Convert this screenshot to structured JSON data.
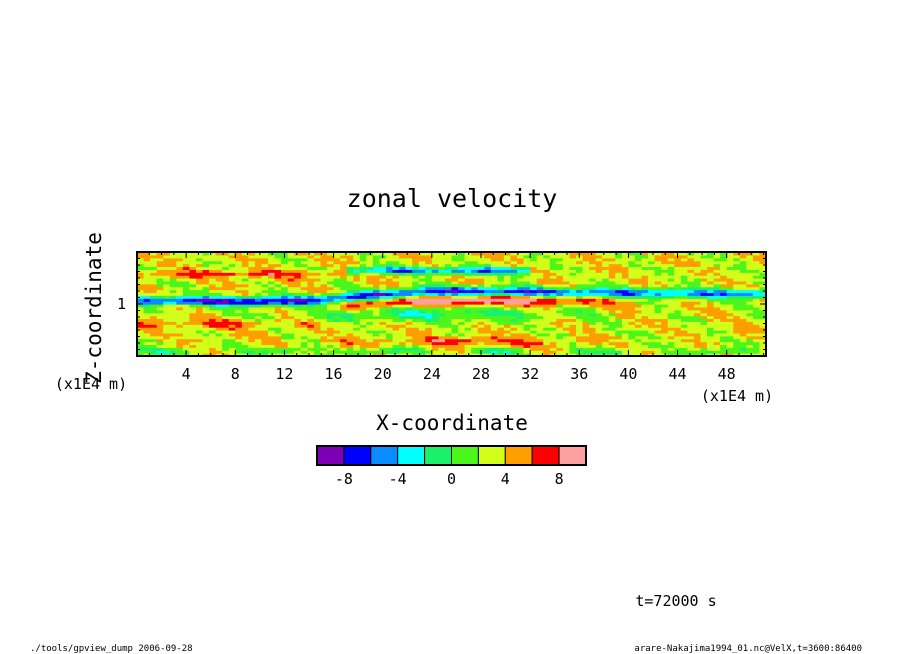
{
  "chart_data": {
    "type": "heatmap",
    "title": "zonal velocity",
    "xlabel": "X-coordinate",
    "ylabel": "Z-coordinate",
    "x_unit": "(x1E4 m)",
    "y_unit": "(x1E4 m)",
    "xlim": [
      0,
      51.2
    ],
    "ylim": [
      0.2,
      1.8
    ],
    "x_ticks": [
      "4",
      "8",
      "12",
      "16",
      "20",
      "24",
      "28",
      "32",
      "36",
      "40",
      "44",
      "48"
    ],
    "y_ticks": [
      "1"
    ],
    "levels": [
      -10,
      -8,
      -6,
      -4,
      -2,
      0,
      2,
      4,
      6,
      8,
      10
    ],
    "level_colors": [
      "#7b00b4",
      "#0000ff",
      "#0a8cff",
      "#00ffff",
      "#1bf06a",
      "#4cf51a",
      "#d2ff1a",
      "#ff9e00",
      "#ff0000",
      "#ffa0a0"
    ],
    "colorbar_labels": [
      "-8",
      "-4",
      "0",
      "4",
      "8"
    ],
    "grid": false,
    "time_label": "t=72000 s"
  },
  "footer": {
    "left": "./tools/gpview_dump  2006-09-28",
    "right": "arare-Nakajima1994_01.nc@VelX,t=3600:86400"
  }
}
